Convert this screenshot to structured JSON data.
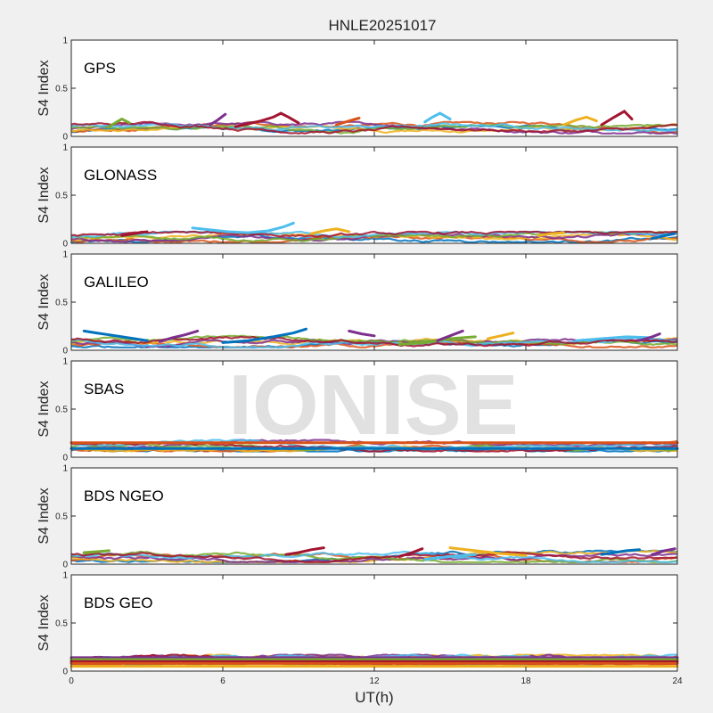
{
  "chart_data": {
    "type": "scatter",
    "title": "HNLE20251017",
    "watermark": "IONISE",
    "xlabel": "UT(h)",
    "ylabel": "S4 Index",
    "xlim": [
      0,
      24
    ],
    "ylim": [
      0,
      1
    ],
    "xticks": [
      "0",
      "6",
      "12",
      "18",
      "24"
    ],
    "yticks": [
      "0",
      "0.5",
      "1"
    ],
    "grid": false,
    "colors": [
      "#0072BD",
      "#D95319",
      "#EDB120",
      "#7E2F8E",
      "#77AC30",
      "#4DBEEE",
      "#A2142F"
    ],
    "panels": [
      {
        "label": "GPS",
        "baseline": 0.08,
        "series": [
          {
            "color": "#A2142F",
            "points": [
              [
                6.5,
                0.1
              ],
              [
                7,
                0.13
              ],
              [
                7.5,
                0.16
              ],
              [
                8,
                0.2
              ],
              [
                8.3,
                0.24
              ],
              [
                8.6,
                0.2
              ],
              [
                9,
                0.14
              ]
            ]
          },
          {
            "color": "#7E2F8E",
            "points": [
              [
                5.5,
                0.12
              ],
              [
                5.8,
                0.17
              ],
              [
                6.1,
                0.23
              ]
            ]
          },
          {
            "color": "#4DBEEE",
            "points": [
              [
                14,
                0.15
              ],
              [
                14.3,
                0.2
              ],
              [
                14.6,
                0.24
              ],
              [
                15,
                0.18
              ]
            ]
          },
          {
            "color": "#A2142F",
            "points": [
              [
                21,
                0.12
              ],
              [
                21.5,
                0.2
              ],
              [
                21.9,
                0.26
              ],
              [
                22.2,
                0.18
              ]
            ]
          },
          {
            "color": "#EDB120",
            "points": [
              [
                19.5,
                0.12
              ],
              [
                20,
                0.17
              ],
              [
                20.4,
                0.2
              ],
              [
                20.8,
                0.16
              ]
            ]
          },
          {
            "color": "#77AC30",
            "points": [
              [
                1.5,
                0.1
              ],
              [
                1.8,
                0.15
              ],
              [
                2,
                0.18
              ],
              [
                2.3,
                0.14
              ]
            ]
          },
          {
            "color": "#D95319",
            "points": [
              [
                10.5,
                0.12
              ],
              [
                11,
                0.16
              ],
              [
                11.4,
                0.19
              ]
            ]
          }
        ]
      },
      {
        "label": "GLONASS",
        "baseline": 0.05,
        "series": [
          {
            "color": "#4DBEEE",
            "points": [
              [
                4.8,
                0.16
              ],
              [
                5.5,
                0.14
              ],
              [
                6.2,
                0.12
              ],
              [
                7,
                0.11
              ],
              [
                7.8,
                0.13
              ],
              [
                8.4,
                0.17
              ],
              [
                8.8,
                0.21
              ]
            ]
          },
          {
            "color": "#EDB120",
            "points": [
              [
                9.5,
                0.1
              ],
              [
                10,
                0.13
              ],
              [
                10.5,
                0.15
              ],
              [
                11,
                0.12
              ]
            ]
          },
          {
            "color": "#A2142F",
            "points": [
              [
                2,
                0.08
              ],
              [
                2.5,
                0.1
              ],
              [
                3,
                0.12
              ]
            ]
          },
          {
            "color": "#EDB120",
            "points": [
              [
                18.5,
                0.08
              ],
              [
                19,
                0.1
              ],
              [
                19.5,
                0.11
              ]
            ]
          },
          {
            "color": "#0072BD",
            "points": [
              [
                23,
                0.05
              ],
              [
                23.5,
                0.08
              ],
              [
                23.9,
                0.1
              ]
            ]
          }
        ]
      },
      {
        "label": "GALILEO",
        "baseline": 0.08,
        "series": [
          {
            "color": "#0072BD",
            "points": [
              [
                0.5,
                0.2
              ],
              [
                1,
                0.18
              ],
              [
                1.5,
                0.16
              ],
              [
                2,
                0.14
              ],
              [
                2.5,
                0.12
              ],
              [
                3,
                0.1
              ]
            ]
          },
          {
            "color": "#7E2F8E",
            "points": [
              [
                3.5,
                0.09
              ],
              [
                4,
                0.13
              ],
              [
                4.5,
                0.16
              ],
              [
                5,
                0.2
              ]
            ]
          },
          {
            "color": "#0072BD",
            "points": [
              [
                6,
                0.08
              ],
              [
                7,
                0.1
              ],
              [
                8,
                0.14
              ],
              [
                8.8,
                0.18
              ],
              [
                9.3,
                0.22
              ]
            ]
          },
          {
            "color": "#7E2F8E",
            "points": [
              [
                11,
                0.2
              ],
              [
                11.5,
                0.17
              ],
              [
                12,
                0.15
              ]
            ]
          },
          {
            "color": "#77AC30",
            "points": [
              [
                13,
                0.06
              ],
              [
                14,
                0.08
              ],
              [
                15,
                0.12
              ],
              [
                16,
                0.14
              ]
            ]
          },
          {
            "color": "#7E2F8E",
            "points": [
              [
                14.5,
                0.1
              ],
              [
                15,
                0.15
              ],
              [
                15.5,
                0.2
              ]
            ]
          },
          {
            "color": "#EDB120",
            "points": [
              [
                16.5,
                0.12
              ],
              [
                17,
                0.15
              ],
              [
                17.5,
                0.18
              ]
            ]
          },
          {
            "color": "#4DBEEE",
            "points": [
              [
                20,
                0.1
              ],
              [
                21,
                0.12
              ],
              [
                22,
                0.14
              ],
              [
                23,
                0.13
              ]
            ]
          },
          {
            "color": "#7E2F8E",
            "points": [
              [
                22.5,
                0.1
              ],
              [
                23,
                0.14
              ],
              [
                23.3,
                0.17
              ]
            ]
          }
        ]
      },
      {
        "label": "SBAS",
        "baseline": 0.11,
        "series": [
          {
            "color": "#D95319",
            "points": [
              [
                0,
                0.15
              ],
              [
                24,
                0.15
              ]
            ]
          },
          {
            "color": "#0072BD",
            "points": [
              [
                0,
                0.09
              ],
              [
                24,
                0.09
              ]
            ]
          }
        ]
      },
      {
        "label": "BDS NGEO",
        "baseline": 0.07,
        "series": [
          {
            "color": "#A2142F",
            "points": [
              [
                8.5,
                0.1
              ],
              [
                9,
                0.12
              ],
              [
                9.5,
                0.15
              ],
              [
                10,
                0.17
              ]
            ]
          },
          {
            "color": "#A2142F",
            "points": [
              [
                13,
                0.08
              ],
              [
                13.5,
                0.12
              ],
              [
                13.9,
                0.16
              ]
            ]
          },
          {
            "color": "#EDB120",
            "points": [
              [
                15,
                0.17
              ],
              [
                16,
                0.14
              ],
              [
                17,
                0.11
              ],
              [
                18,
                0.09
              ]
            ]
          },
          {
            "color": "#4DBEEE",
            "points": [
              [
                14,
                0.05
              ],
              [
                15,
                0.08
              ],
              [
                16,
                0.1
              ]
            ]
          },
          {
            "color": "#0072BD",
            "points": [
              [
                21,
                0.1
              ],
              [
                21.5,
                0.12
              ],
              [
                22,
                0.14
              ],
              [
                22.5,
                0.15
              ]
            ]
          },
          {
            "color": "#77AC30",
            "points": [
              [
                0.5,
                0.12
              ],
              [
                1,
                0.13
              ],
              [
                1.5,
                0.14
              ]
            ]
          },
          {
            "color": "#7E2F8E",
            "points": [
              [
                23,
                0.1
              ],
              [
                23.5,
                0.14
              ],
              [
                23.9,
                0.16
              ]
            ]
          }
        ]
      },
      {
        "label": "BDS GEO",
        "baseline": 0.1,
        "series": [
          {
            "color": "#7E2F8E",
            "points": [
              [
                0,
                0.14
              ],
              [
                24,
                0.14
              ]
            ]
          },
          {
            "color": "#77AC30",
            "points": [
              [
                0,
                0.12
              ],
              [
                24,
                0.12
              ]
            ]
          },
          {
            "color": "#A2142F",
            "points": [
              [
                0,
                0.1
              ],
              [
                24,
                0.1
              ]
            ]
          },
          {
            "color": "#D95319",
            "points": [
              [
                0,
                0.08
              ],
              [
                24,
                0.08
              ]
            ]
          },
          {
            "color": "#EDB120",
            "points": [
              [
                0,
                0.05
              ],
              [
                24,
                0.05
              ]
            ]
          }
        ]
      }
    ]
  }
}
